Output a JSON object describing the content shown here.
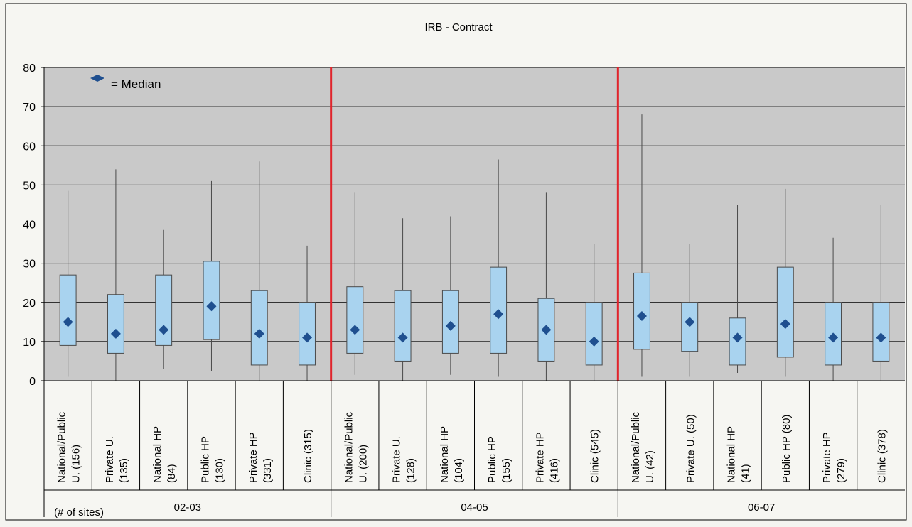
{
  "chart_data": {
    "type": "box",
    "title": "IRB - Contract",
    "legend": {
      "label": "= Median",
      "marker": "diamond",
      "placement": "top-left"
    },
    "ylim": [
      0,
      80
    ],
    "yticks": [
      0,
      10,
      20,
      30,
      40,
      50,
      60,
      70,
      80
    ],
    "grid": true,
    "footnote": "(# of sites)",
    "groups": [
      {
        "label": "02-03",
        "categories": [
          {
            "label": [
              "National/Public",
              "U. (156)"
            ],
            "min": 1,
            "q1": 9,
            "median": 15,
            "q3": 27,
            "max": 48.5
          },
          {
            "label": [
              "Private U.",
              "(135)"
            ],
            "min": 0,
            "q1": 7,
            "median": 12,
            "q3": 22,
            "max": 54
          },
          {
            "label": [
              "National HP",
              "(84)"
            ],
            "min": 3,
            "q1": 9,
            "median": 13,
            "q3": 27,
            "max": 38.5
          },
          {
            "label": [
              "Public HP",
              "(130)"
            ],
            "min": 2.5,
            "q1": 10.5,
            "median": 19,
            "q3": 30.5,
            "max": 51
          },
          {
            "label": [
              "Private HP",
              "(331)"
            ],
            "min": 0,
            "q1": 4,
            "median": 12,
            "q3": 23,
            "max": 56
          },
          {
            "label": [
              "Clinic (315)"
            ],
            "min": 0,
            "q1": 4,
            "median": 11,
            "q3": 20,
            "max": 34.5
          }
        ]
      },
      {
        "label": "04-05",
        "categories": [
          {
            "label": [
              "National/Public",
              "U. (200)"
            ],
            "min": 1.5,
            "q1": 7,
            "median": 13,
            "q3": 24,
            "max": 48
          },
          {
            "label": [
              "Private U.",
              "(128)"
            ],
            "min": 0,
            "q1": 5,
            "median": 11,
            "q3": 23,
            "max": 41.5
          },
          {
            "label": [
              "National HP",
              "(104)"
            ],
            "min": 1.5,
            "q1": 7,
            "median": 14,
            "q3": 23,
            "max": 42
          },
          {
            "label": [
              "Public HP",
              "(155)"
            ],
            "min": 1,
            "q1": 7,
            "median": 17,
            "q3": 29,
            "max": 56.5
          },
          {
            "label": [
              "Private HP",
              "(416)"
            ],
            "min": 0,
            "q1": 5,
            "median": 13,
            "q3": 21,
            "max": 48
          },
          {
            "label": [
              "Clinic (545)"
            ],
            "min": 0,
            "q1": 4,
            "median": 10,
            "q3": 20,
            "max": 35
          }
        ]
      },
      {
        "label": "06-07",
        "categories": [
          {
            "label": [
              "National/Public",
              "U. (42)"
            ],
            "min": 1,
            "q1": 8,
            "median": 16.5,
            "q3": 27.5,
            "max": 68
          },
          {
            "label": [
              "Private U. (50)"
            ],
            "min": 1,
            "q1": 7.5,
            "median": 15,
            "q3": 20,
            "max": 35
          },
          {
            "label": [
              "National HP",
              "(41)"
            ],
            "min": 2,
            "q1": 4,
            "median": 11,
            "q3": 16,
            "max": 45
          },
          {
            "label": [
              "Public HP (80)"
            ],
            "min": 1,
            "q1": 6,
            "median": 14.5,
            "q3": 29,
            "max": 49
          },
          {
            "label": [
              "Private HP",
              "(279)"
            ],
            "min": 0,
            "q1": 4,
            "median": 11,
            "q3": 20,
            "max": 36.5
          },
          {
            "label": [
              "Clinic (378)"
            ],
            "min": 0,
            "q1": 5,
            "median": 11,
            "q3": 20,
            "max": 45
          }
        ]
      }
    ],
    "colors": {
      "plot_bg": "#c9c9c9",
      "box_fill": "#a9d3ef",
      "box_stroke": "#4a4a4a",
      "median_marker": "#1f4f8f",
      "separator": "#e0242c",
      "gridline": "#000000",
      "page_bg": "#f4f4f0"
    }
  }
}
